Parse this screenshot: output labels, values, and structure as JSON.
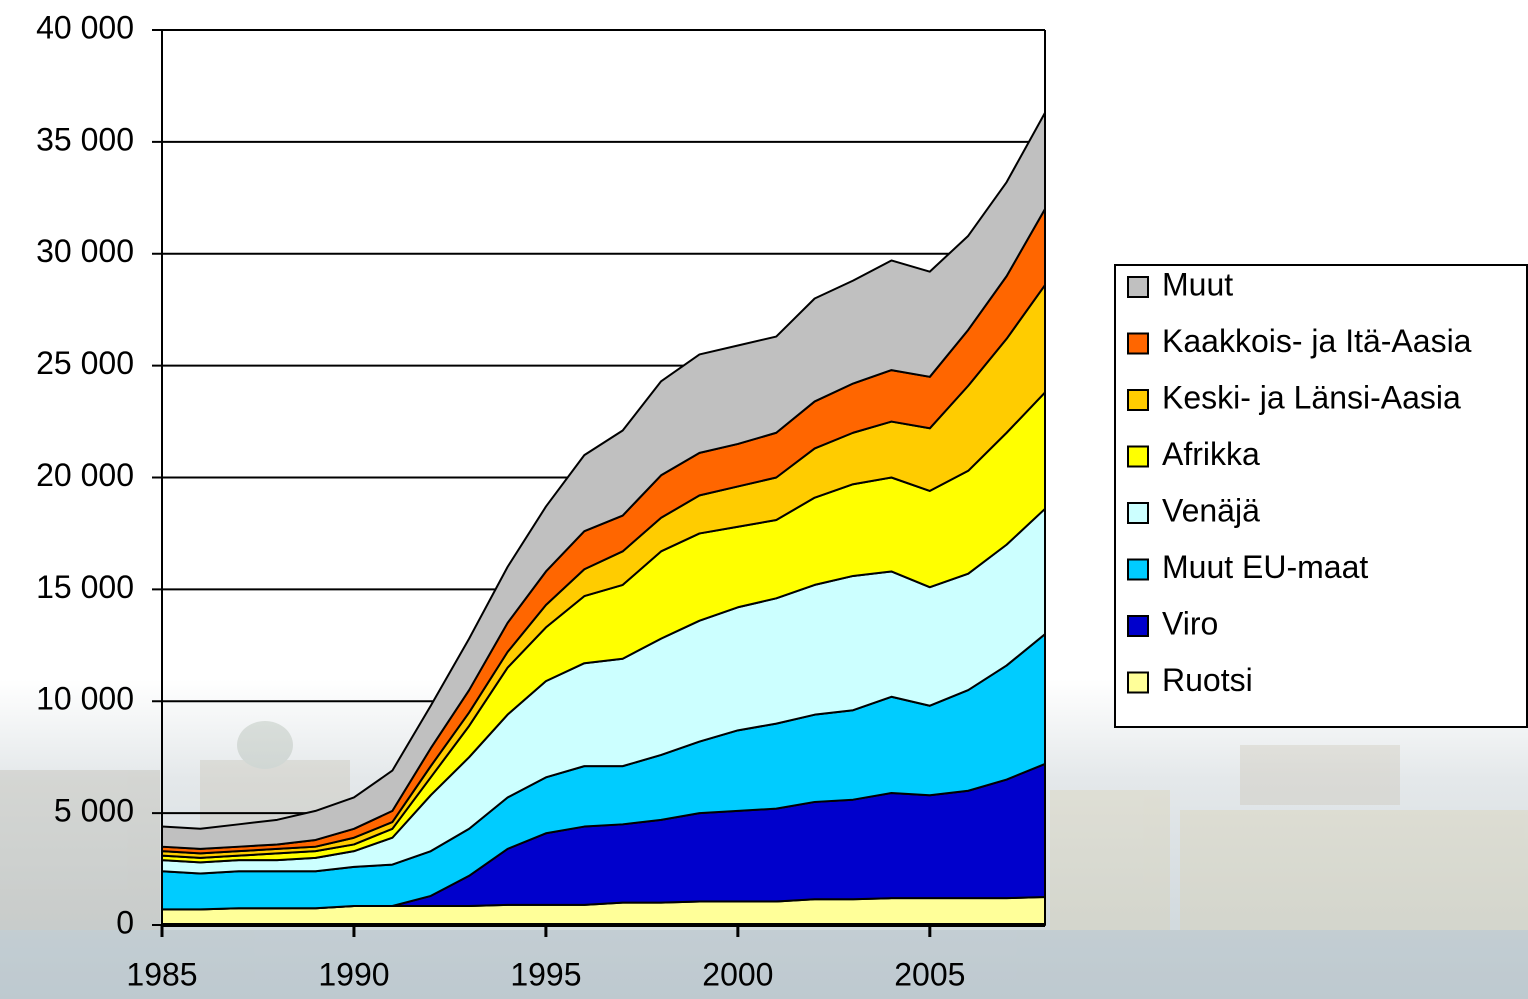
{
  "chart_data": {
    "type": "stacked-area",
    "x": [
      1985,
      1986,
      1987,
      1988,
      1989,
      1990,
      1991,
      1992,
      1993,
      1994,
      1995,
      1996,
      1997,
      1998,
      1999,
      2000,
      2001,
      2002,
      2003,
      2004,
      2005,
      2006,
      2007,
      2008
    ],
    "xlim": [
      1985,
      2008
    ],
    "xticks": [
      1985,
      1990,
      1995,
      2000,
      2005
    ],
    "ylim": [
      0,
      40000
    ],
    "yticks": [
      0,
      {
        "value": 5000,
        "label": "5 000"
      },
      {
        "value": 10000,
        "label": "10 000"
      },
      {
        "value": 15000,
        "label": "15 000"
      },
      {
        "value": 20000,
        "label": "20 000"
      },
      {
        "value": 25000,
        "label": "25 000"
      },
      {
        "value": 30000,
        "label": "30 000"
      },
      {
        "value": 35000,
        "label": "35 000"
      },
      {
        "value": 40000,
        "label": "40 000"
      }
    ],
    "grid": true,
    "legend": "right",
    "series": [
      {
        "name": "Ruotsi",
        "color": "#ffff99",
        "values": [
          700,
          700,
          750,
          750,
          750,
          850,
          850,
          850,
          850,
          900,
          900,
          900,
          1000,
          1000,
          1050,
          1050,
          1050,
          1150,
          1150,
          1200,
          1200,
          1200,
          1200,
          1250
        ]
      },
      {
        "name": "Viro",
        "color": "#0000cc",
        "values": [
          0,
          0,
          0,
          0,
          0,
          0,
          0,
          450,
          1350,
          2500,
          3200,
          3500,
          3500,
          3700,
          3950,
          4050,
          4150,
          4350,
          4450,
          4700,
          4600,
          4800,
          5300,
          5950
        ]
      },
      {
        "name": "Muut EU-maat",
        "color": "#00ccff",
        "values": [
          1700,
          1600,
          1650,
          1650,
          1650,
          1750,
          1850,
          2000,
          2100,
          2300,
          2500,
          2700,
          2600,
          2900,
          3200,
          3600,
          3800,
          3900,
          4000,
          4300,
          4000,
          4500,
          5100,
          5800
        ]
      },
      {
        "name": "Venäjä",
        "color": "#ccffff",
        "values": [
          500,
          500,
          500,
          500,
          600,
          700,
          1200,
          2500,
          3200,
          3700,
          4300,
          4600,
          4800,
          5200,
          5400,
          5500,
          5600,
          5800,
          6000,
          5600,
          5300,
          5200,
          5400,
          5600
        ]
      },
      {
        "name": "Afrikka",
        "color": "#ffff00",
        "values": [
          200,
          200,
          200,
          300,
          300,
          300,
          400,
          800,
          1400,
          2100,
          2400,
          3000,
          3300,
          3900,
          3900,
          3600,
          3500,
          3900,
          4100,
          4200,
          4300,
          4600,
          5000,
          5200
        ]
      },
      {
        "name": "Keski- ja Länsi-Aasia",
        "color": "#ffcc00",
        "values": [
          200,
          200,
          200,
          200,
          200,
          300,
          300,
          500,
          600,
          700,
          1000,
          1200,
          1500,
          1500,
          1700,
          1800,
          1900,
          2200,
          2300,
          2500,
          2800,
          3800,
          4200,
          4800
        ]
      },
      {
        "name": "Kaakkois- ja Itä-Aasia",
        "color": "#ff6600",
        "values": [
          200,
          200,
          200,
          200,
          300,
          400,
          500,
          800,
          1000,
          1300,
          1500,
          1700,
          1600,
          1900,
          1900,
          1900,
          2000,
          2100,
          2200,
          2300,
          2300,
          2500,
          2800,
          3400
        ]
      },
      {
        "name": "Muut",
        "color": "#c0c0c0",
        "values": [
          900,
          900,
          1000,
          1100,
          1300,
          1400,
          1800,
          1900,
          2300,
          2500,
          2900,
          3400,
          3800,
          4200,
          4400,
          4400,
          4300,
          4600,
          4600,
          4900,
          4700,
          4200,
          4200,
          4300
        ]
      }
    ]
  }
}
